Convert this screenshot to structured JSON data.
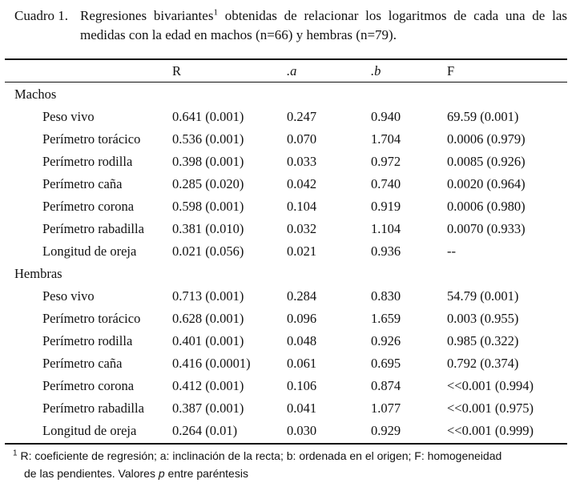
{
  "caption": {
    "label": "Cuadro 1.",
    "text_part1": "Regresiones bivariantes",
    "sup": "1",
    "text_part2": " obtenidas de relacionar los logaritmos de cada una de las medidas con la edad en machos (n=66) y hembras (n=79)."
  },
  "headers": {
    "r": "R",
    "a": ".a",
    "b": ".b",
    "f": "F"
  },
  "groups": [
    {
      "name": "Machos",
      "rows": [
        {
          "name": "Peso vivo",
          "r": "0.641 (0.001)",
          "a": "0.247",
          "b": "0.940",
          "f": "69.59 (0.001)"
        },
        {
          "name": "Perímetro torácico",
          "r": "0.536 (0.001)",
          "a": "0.070",
          "b": "1.704",
          "f": "0.0006 (0.979)"
        },
        {
          "name": "Perímetro rodilla",
          "r": "0.398 (0.001)",
          "a": "0.033",
          "b": "0.972",
          "f": "0.0085 (0.926)"
        },
        {
          "name": "Perímetro caña",
          "r": "0.285 (0.020)",
          "a": "0.042",
          "b": "0.740",
          "f": "0.0020 (0.964)"
        },
        {
          "name": "Perímetro corona",
          "r": "0.598 (0.001)",
          "a": "0.104",
          "b": "0.919",
          "f": "0.0006 (0.980)"
        },
        {
          "name": "Perímetro rabadilla",
          "r": "0.381 (0.010)",
          "a": "0.032",
          "b": "1.104",
          "f": "0.0070 (0.933)"
        },
        {
          "name": "Longitud de oreja",
          "r": "0.021 (0.056)",
          "a": "0.021",
          "b": "0.936",
          "f": "--"
        }
      ]
    },
    {
      "name": "Hembras",
      "rows": [
        {
          "name": "Peso vivo",
          "r": "0.713 (0.001)",
          "a": "0.284",
          "b": "0.830",
          "f": "54.79 (0.001)"
        },
        {
          "name": "Perímetro torácico",
          "r": "0.628 (0.001)",
          "a": "0.096",
          "b": "1.659",
          "f": "0.003 (0.955)"
        },
        {
          "name": "Perímetro rodilla",
          "r": "0.401 (0.001)",
          "a": "0.048",
          "b": "0.926",
          "f": "0.985 (0.322)"
        },
        {
          "name": "Perímetro caña",
          "r": "0.416 (0.0001)",
          "a": "0.061",
          "b": "0.695",
          "f": "0.792 (0.374)"
        },
        {
          "name": "Perímetro corona",
          "r": "0.412 (0.001)",
          "a": "0.106",
          "b": "0.874",
          "f": "<<0.001 (0.994)"
        },
        {
          "name": "Perímetro rabadilla",
          "r": "0.387 (0.001)",
          "a": "0.041",
          "b": "1.077",
          "f": "<<0.001 (0.975)"
        },
        {
          "name": "Longitud de oreja",
          "r": "0.264 (0.01)",
          "a": "0.030",
          "b": "0.929",
          "f": "<<0.001 (0.999)"
        }
      ]
    }
  ],
  "footnote": {
    "sup": "1",
    "line1": " R: coeficiente de regresión; a: inclinación de la recta; b: ordenada en el origen; F: homogeneidad",
    "line2_before": "de las pendientes. Valores ",
    "line2_italic": "p",
    "line2_after": " entre paréntesis"
  }
}
